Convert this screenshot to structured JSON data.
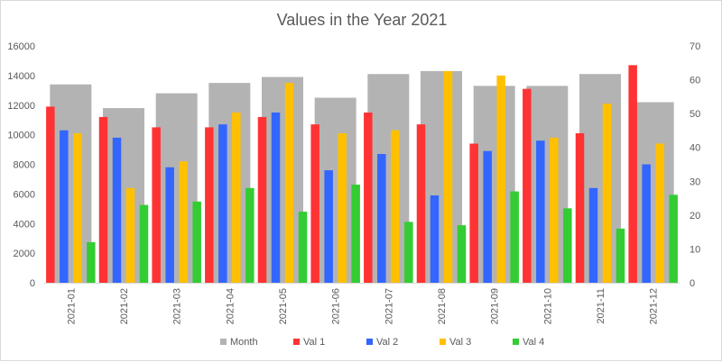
{
  "chart_data": {
    "type": "bar",
    "title": "Values in the Year 2021",
    "categories": [
      "2021-01",
      "2021-02",
      "2021-03",
      "2021-04",
      "2021-05",
      "2021-06",
      "2021-07",
      "2021-08",
      "2021-09",
      "2021-10",
      "2021-11",
      "2021-12"
    ],
    "primary_axis": {
      "ylim": [
        0,
        16000
      ],
      "ticks": [
        0,
        2000,
        4000,
        6000,
        8000,
        10000,
        12000,
        14000,
        16000
      ]
    },
    "secondary_axis": {
      "ylim": [
        0,
        70
      ],
      "ticks": [
        0,
        10,
        20,
        30,
        40,
        50,
        60,
        70
      ]
    },
    "grid": false,
    "legend_position": "bottom",
    "series": [
      {
        "name": "Month",
        "axis": "secondary",
        "color": "#b3b3b3",
        "values": [
          13400,
          11800,
          12800,
          13500,
          13900,
          12500,
          14100,
          14300,
          13300,
          13300,
          14100,
          12200
        ]
      },
      {
        "name": "Val 1",
        "axis": "primary",
        "color": "#ff3333",
        "values": [
          11900,
          11200,
          10500,
          10500,
          11200,
          10700,
          11500,
          10700,
          9400,
          13100,
          10100,
          14700
        ]
      },
      {
        "name": "Val 2",
        "axis": "primary",
        "color": "#3366ff",
        "values": [
          10300,
          9800,
          7800,
          10700,
          11500,
          7600,
          8700,
          5900,
          8900,
          9600,
          6400,
          8000
        ]
      },
      {
        "name": "Val 3",
        "axis": "primary",
        "color": "#ffc000",
        "values": [
          10100,
          6400,
          8200,
          11500,
          13500,
          10100,
          10300,
          14300,
          14000,
          9800,
          12100,
          9400
        ]
      },
      {
        "name": "Val 4",
        "axis": "secondary",
        "color": "#33cc33",
        "values": [
          12,
          23,
          24,
          28,
          21,
          29,
          18,
          17,
          27,
          22,
          16,
          26
        ]
      }
    ]
  }
}
